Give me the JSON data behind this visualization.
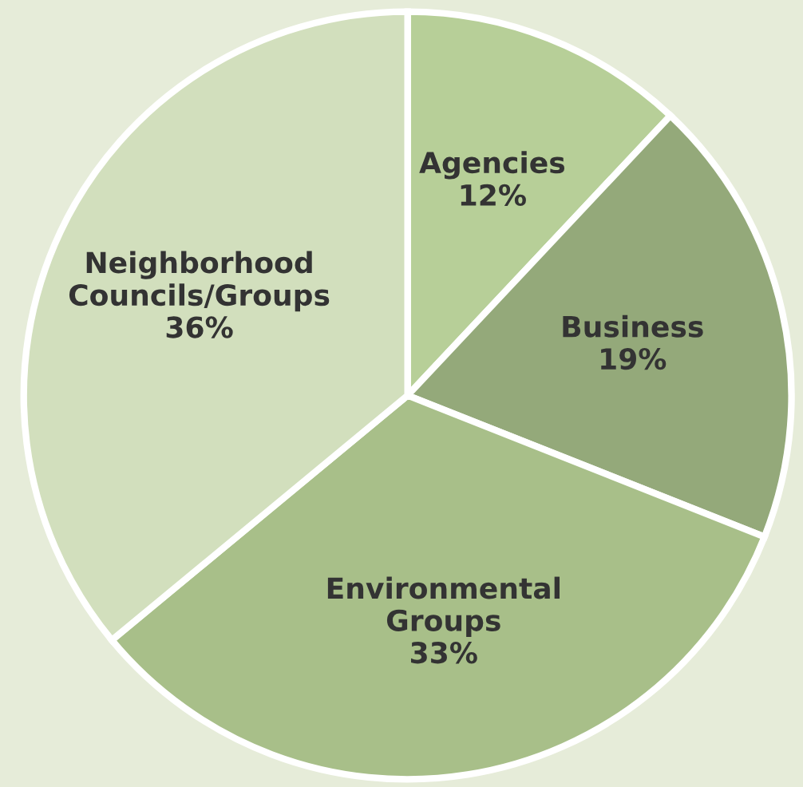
{
  "chart_data": {
    "type": "pie",
    "categories": [
      "Agencies",
      "Business",
      "Environmental\nGroups",
      "Neighborhood\nCouncils/Groups"
    ],
    "values": [
      12,
      19,
      33,
      36
    ],
    "value_labels": [
      "12%",
      "19%",
      "33%",
      "36%"
    ],
    "colors": [
      "#b7cf98",
      "#94a97a",
      "#a8bf89",
      "#d2dfbd"
    ]
  }
}
